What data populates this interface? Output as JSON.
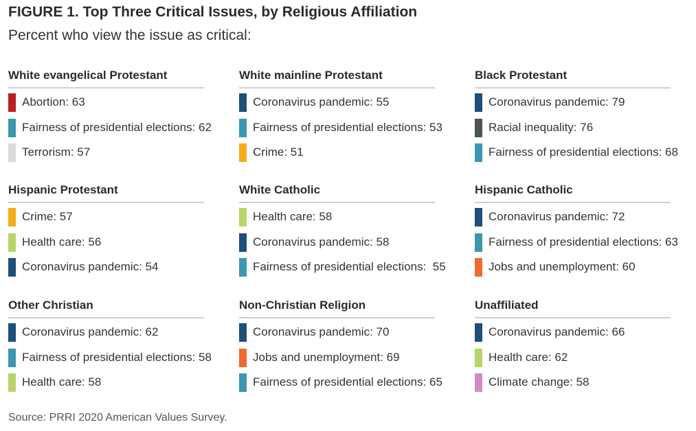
{
  "chart_data": {
    "type": "table",
    "title": "FIGURE 1. Top Three Critical Issues, by Religious Affiliation",
    "subtitle": "Percent who view the issue as critical:",
    "source": "Source: PRRI 2020 American Values Survey.",
    "groups": [
      {
        "name": "White evangelical Protestant",
        "issues": [
          {
            "issue": "Abortion",
            "value": 63,
            "label": "Abortion: 63",
            "color": "#b82025"
          },
          {
            "issue": "Fairness of presidential elections",
            "value": 62,
            "label": "Fairness of presidential elections: 62",
            "color": "#3a97b0"
          },
          {
            "issue": "Terrorism",
            "value": 57,
            "label": "Terrorism: 57",
            "color": "#d9d9d9"
          }
        ]
      },
      {
        "name": "White mainline Protestant",
        "issues": [
          {
            "issue": "Coronavirus pandemic",
            "value": 55,
            "label": "Coronavirus pandemic: 55",
            "color": "#1f4e79"
          },
          {
            "issue": "Fairness of presidential elections",
            "value": 53,
            "label": "Fairness of presidential elections: 53",
            "color": "#3a97b0"
          },
          {
            "issue": "Crime",
            "value": 51,
            "label": "Crime: 51",
            "color": "#f5ac1b"
          }
        ]
      },
      {
        "name": "Black Protestant",
        "issues": [
          {
            "issue": "Coronavirus pandemic",
            "value": 79,
            "label": "Coronavirus pandemic: 79",
            "color": "#1f4e79"
          },
          {
            "issue": "Racial inequality",
            "value": 76,
            "label": "Racial inequality: 76",
            "color": "#4d5256"
          },
          {
            "issue": "Fairness of presidential elections",
            "value": 68,
            "label": "Fairness of presidential elections: 68",
            "color": "#3a97b0"
          }
        ]
      },
      {
        "name": "Hispanic Protestant",
        "issues": [
          {
            "issue": "Crime",
            "value": 57,
            "label": "Crime: 57",
            "color": "#f5ac1b"
          },
          {
            "issue": "Health care",
            "value": 56,
            "label": "Health care: 56",
            "color": "#b9d46a"
          },
          {
            "issue": "Coronavirus pandemic",
            "value": 54,
            "label": "Coronavirus pandemic: 54",
            "color": "#1f4e79"
          }
        ]
      },
      {
        "name": "White Catholic",
        "issues": [
          {
            "issue": "Health care",
            "value": 58,
            "label": "Health care: 58",
            "color": "#b9d46a"
          },
          {
            "issue": "Coronavirus pandemic",
            "value": 58,
            "label": "Coronavirus pandemic: 58",
            "color": "#1f4e79"
          },
          {
            "issue": "Fairness of presidential elections",
            "value": 55,
            "label": "Fairness of presidential elections:  55",
            "color": "#3a97b0"
          }
        ]
      },
      {
        "name": "Hispanic Catholic",
        "issues": [
          {
            "issue": "Coronavirus pandemic",
            "value": 72,
            "label": "Coronavirus pandemic: 72",
            "color": "#1f4e79"
          },
          {
            "issue": "Fairness of presidential elections",
            "value": 63,
            "label": "Fairness of presidential elections: 63",
            "color": "#3a97b0"
          },
          {
            "issue": "Jobs and unemployment",
            "value": 60,
            "label": "Jobs and unemployment: 60",
            "color": "#ee6a2c"
          }
        ]
      },
      {
        "name": "Other Christian",
        "issues": [
          {
            "issue": "Coronavirus pandemic",
            "value": 62,
            "label": "Coronavirus pandemic: 62",
            "color": "#1f4e79"
          },
          {
            "issue": "Fairness of presidential elections",
            "value": 58,
            "label": "Fairness of presidential elections: 58",
            "color": "#3a97b0"
          },
          {
            "issue": "Health care",
            "value": 58,
            "label": "Health care: 58",
            "color": "#b9d46a"
          }
        ]
      },
      {
        "name": "Non-Christian Religion",
        "issues": [
          {
            "issue": "Coronavirus pandemic",
            "value": 70,
            "label": "Coronavirus pandemic: 70",
            "color": "#1f4e79"
          },
          {
            "issue": "Jobs and unemployment",
            "value": 69,
            "label": "Jobs and unemployment: 69",
            "color": "#ee6a2c"
          },
          {
            "issue": "Fairness of presidential elections",
            "value": 65,
            "label": "Fairness of presidential elections: 65",
            "color": "#3a97b0"
          }
        ]
      },
      {
        "name": "Unaffiliated",
        "issues": [
          {
            "issue": "Coronavirus pandemic",
            "value": 66,
            "label": "Coronavirus pandemic: 66",
            "color": "#1f4e79"
          },
          {
            "issue": "Health care",
            "value": 62,
            "label": "Health care: 62",
            "color": "#b9d46a"
          },
          {
            "issue": "Climate change",
            "value": 58,
            "label": "Climate change: 58",
            "color": "#cf8cc2"
          }
        ]
      }
    ]
  }
}
